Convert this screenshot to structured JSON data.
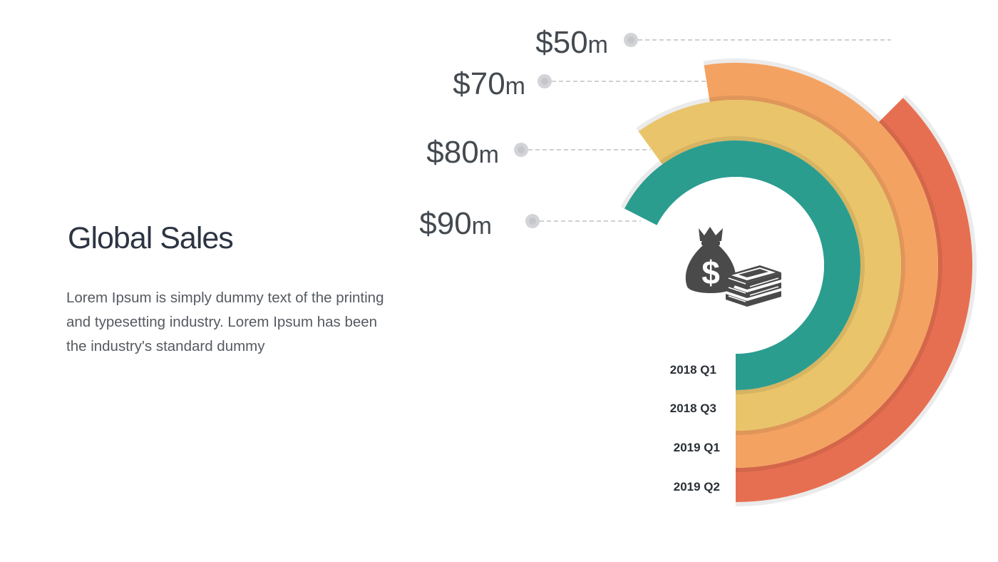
{
  "heading": "Global Sales",
  "description": "Lorem Ipsum is simply dummy text of the printing and typesetting industry. Lorem Ipsum has been the industry's standard dummy",
  "icon": "money-bag-and-cash-icon",
  "chart_data": {
    "type": "radial-bar",
    "title": "",
    "unit_suffix": "m",
    "series": [
      {
        "category": "2018 Q1",
        "value": 90,
        "label": "$90",
        "color": "#2a9d8f"
      },
      {
        "category": "2018 Q3",
        "value": 80,
        "label": "$80",
        "color": "#e9c46a"
      },
      {
        "category": "2019 Q1",
        "value": 70,
        "label": "$70",
        "color": "#f4a261"
      },
      {
        "category": "2019 Q2",
        "value": 50,
        "label": "$50",
        "color": "#e76f51"
      }
    ]
  }
}
